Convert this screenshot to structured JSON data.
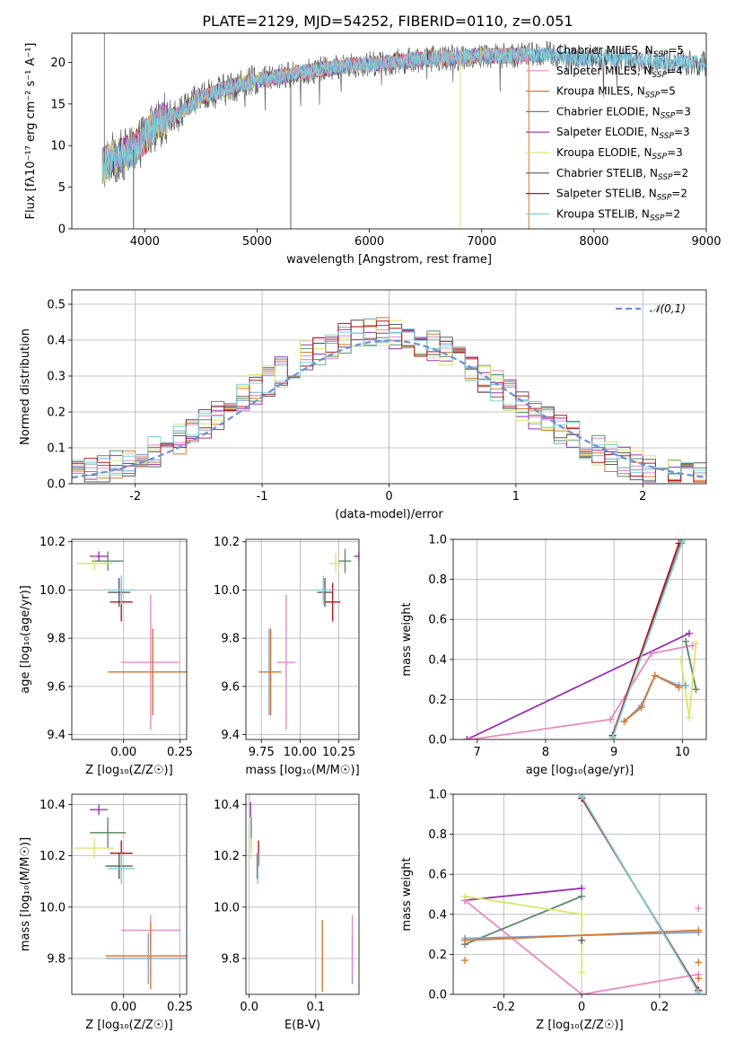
{
  "colors": {
    "Chabrier MILES": "#7aa3d6",
    "Salpeter MILES": "#e88ac0",
    "Kroupa MILES": "#d9782f",
    "Chabrier ELODIE": "#5a8a6a",
    "Salpeter ELODIE": "#9a30b0",
    "Kroupa ELODIE": "#d8e86a",
    "Chabrier STELIB": "#5a5a5a",
    "Salpeter STELIB": "#b01818",
    "Kroupa STELIB": "#7ad0d8"
  },
  "chart_data": [
    {
      "id": "spectrum",
      "type": "line",
      "title": "PLATE=2129, MJD=54252, FIBERID=0110, z=0.051",
      "xlabel": "wavelength [Angstrom, rest frame]",
      "ylabel": "Flux [fλ10⁻¹⁷ erg cm⁻² s⁻¹ A⁻¹]",
      "xlim": [
        3350,
        9000
      ],
      "ylim": [
        0,
        23.5
      ],
      "xticks": [
        4000,
        5000,
        6000,
        7000,
        8000,
        9000
      ],
      "yticks": [
        0,
        5,
        10,
        15,
        20
      ],
      "grid": false,
      "legend_position": "right",
      "legend": [
        {
          "name": "Chabrier MILES",
          "ssp": "5"
        },
        {
          "name": "Salpeter MILES",
          "ssp": "4"
        },
        {
          "name": "Kroupa MILES",
          "ssp": "5"
        },
        {
          "name": "Chabrier ELODIE",
          "ssp": "3"
        },
        {
          "name": "Salpeter ELODIE",
          "ssp": "3"
        },
        {
          "name": "Kroupa ELODIE",
          "ssp": "3"
        },
        {
          "name": "Chabrier STELIB",
          "ssp": "2"
        },
        {
          "name": "Salpeter STELIB",
          "ssp": "2"
        },
        {
          "name": "Kroupa STELIB",
          "ssp": "2"
        }
      ],
      "continuum": {
        "x": [
          3620,
          3700,
          3800,
          3900,
          4000,
          4100,
          4200,
          4300,
          4400,
          4500,
          4600,
          4800,
          5000,
          5200,
          5400,
          5600,
          5800,
          6000,
          6200,
          6400,
          6600,
          6800,
          7000,
          7200,
          7400,
          7600,
          7800,
          8000,
          8200,
          8400,
          8600,
          8800,
          9000
        ],
        "y": [
          7.5,
          8.5,
          8.8,
          9.5,
          11.0,
          12.5,
          13.5,
          13.8,
          14.8,
          15.8,
          16.2,
          17.2,
          17.8,
          18.3,
          18.8,
          19.2,
          19.6,
          19.8,
          20.0,
          20.3,
          20.5,
          20.6,
          20.8,
          20.8,
          20.9,
          21.0,
          20.5,
          20.4,
          20.5,
          20.3,
          20.1,
          20.0,
          19.8
        ]
      },
      "dips": [
        {
          "x": 3900,
          "y": 0
        },
        {
          "x": 5300,
          "y": 0
        },
        {
          "x": 6810,
          "y": 0
        },
        {
          "x": 7420,
          "y": 0
        }
      ],
      "spikes": [
        {
          "x": 3700,
          "y": 23.5
        }
      ]
    },
    {
      "id": "residuals",
      "type": "histogram",
      "xlabel": "(data-model)/error",
      "ylabel": "Normed distribution",
      "xlim": [
        -2.5,
        2.5
      ],
      "ylim": [
        0,
        0.54
      ],
      "xticks": [
        -2,
        -1,
        0,
        1,
        2
      ],
      "yticks": [
        0.0,
        0.1,
        0.2,
        0.3,
        0.4,
        0.5
      ],
      "grid": true,
      "bin_width": 0.1,
      "legend": [
        {
          "name": "𝒩(0,1)",
          "style": "dashed",
          "color": "#6b8fd8"
        }
      ],
      "legend_position": "top-right"
    },
    {
      "id": "age-vs-z",
      "type": "scatter",
      "xlabel": "Z [log₁₀(Z/Z☉)]",
      "ylabel": "age  [log₁₀(age/yr)]",
      "xlim": [
        -0.23,
        0.28
      ],
      "ylim": [
        9.38,
        10.21
      ],
      "xticks": [
        -0.25,
        0.0,
        0.25
      ],
      "xticklabels": [
        "",
        "0.00",
        "0.25"
      ],
      "yticks": [
        9.4,
        9.6,
        9.8,
        10.0,
        10.2
      ],
      "grid": true,
      "points": [
        {
          "series": "Chabrier MILES",
          "x": 0.13,
          "y": 9.66,
          "xerr": 0.19,
          "yerr": 0.18
        },
        {
          "series": "Salpeter MILES",
          "x": 0.12,
          "y": 9.7,
          "xerr": 0.13,
          "yerr": 0.28
        },
        {
          "series": "Kroupa MILES",
          "x": 0.13,
          "y": 9.66,
          "xerr": 0.2,
          "yerr": 0.18
        },
        {
          "series": "Chabrier ELODIE",
          "x": -0.07,
          "y": 10.12,
          "xerr": 0.07,
          "yerr": 0.04
        },
        {
          "series": "Salpeter ELODIE",
          "x": -0.11,
          "y": 10.14,
          "xerr": 0.04,
          "yerr": 0.02
        },
        {
          "series": "Kroupa ELODIE",
          "x": -0.13,
          "y": 10.11,
          "xerr": 0.08,
          "yerr": 0.03
        },
        {
          "series": "Chabrier STELIB",
          "x": -0.02,
          "y": 9.99,
          "xerr": 0.05,
          "yerr": 0.06
        },
        {
          "series": "Salpeter STELIB",
          "x": -0.01,
          "y": 9.95,
          "xerr": 0.05,
          "yerr": 0.08
        },
        {
          "series": "Kroupa STELIB",
          "x": -0.01,
          "y": 10.0,
          "xerr": 0.06,
          "yerr": 0.06
        }
      ]
    },
    {
      "id": "age-vs-mass",
      "type": "scatter",
      "xlabel": "mass [log₁₀(M/M☉)]",
      "xlim": [
        9.65,
        10.38
      ],
      "ylim": [
        9.38,
        10.21
      ],
      "xticks": [
        9.75,
        10.0,
        10.25
      ],
      "xticklabels": [
        "9.75",
        "10.00",
        "10.25"
      ],
      "yticks": [
        9.4,
        9.6,
        9.8,
        10.0,
        10.2
      ],
      "grid": true,
      "points": [
        {
          "series": "Chabrier MILES",
          "x": 9.8,
          "y": 9.66,
          "xerr": 0.07,
          "yerr": 0.18
        },
        {
          "series": "Salpeter MILES",
          "x": 9.91,
          "y": 9.7,
          "xerr": 0.06,
          "yerr": 0.28
        },
        {
          "series": "Kroupa MILES",
          "x": 9.81,
          "y": 9.66,
          "xerr": 0.07,
          "yerr": 0.18
        },
        {
          "series": "Chabrier ELODIE",
          "x": 10.29,
          "y": 10.12,
          "xerr": 0.04,
          "yerr": 0.05
        },
        {
          "series": "Salpeter ELODIE",
          "x": 10.38,
          "y": 10.14,
          "xerr": 0.03,
          "yerr": 0.02
        },
        {
          "series": "Kroupa ELODIE",
          "x": 10.23,
          "y": 10.11,
          "xerr": 0.04,
          "yerr": 0.04
        },
        {
          "series": "Chabrier STELIB",
          "x": 10.16,
          "y": 9.99,
          "xerr": 0.05,
          "yerr": 0.06
        },
        {
          "series": "Salpeter STELIB",
          "x": 10.21,
          "y": 9.95,
          "xerr": 0.05,
          "yerr": 0.08
        },
        {
          "series": "Kroupa STELIB",
          "x": 10.15,
          "y": 10.0,
          "xerr": 0.06,
          "yerr": 0.06
        }
      ]
    },
    {
      "id": "massweight-vs-age",
      "type": "line",
      "xlabel": "age  [log₁₀(age/yr)]",
      "ylabel": "mass weight",
      "xlim": [
        6.65,
        10.35
      ],
      "ylim": [
        0,
        1
      ],
      "xticks": [
        7,
        8,
        9,
        10
      ],
      "yticks": [
        0.0,
        0.2,
        0.4,
        0.6,
        0.8,
        1.0
      ],
      "grid": true,
      "series": [
        {
          "name": "Chabrier MILES",
          "x": [
            9.15,
            9.4,
            9.6,
            9.95,
            10.05
          ],
          "y": [
            0.09,
            0.17,
            0.32,
            0.27,
            0.27
          ]
        },
        {
          "name": "Salpeter MILES",
          "x": [
            6.9,
            8.95,
            9.55,
            10.15
          ],
          "y": [
            0.0,
            0.1,
            0.43,
            0.47
          ]
        },
        {
          "name": "Kroupa MILES",
          "x": [
            9.15,
            9.4,
            9.6,
            9.95
          ],
          "y": [
            0.09,
            0.16,
            0.32,
            0.26
          ]
        },
        {
          "name": "Chabrier ELODIE",
          "x": [
            10.05,
            10.2
          ],
          "y": [
            0.49,
            0.25
          ]
        },
        {
          "name": "Salpeter ELODIE",
          "x": [
            6.85,
            10.1
          ],
          "y": [
            0.0,
            0.53
          ]
        },
        {
          "name": "Kroupa ELODIE",
          "x": [
            9.98,
            10.1,
            10.2
          ],
          "y": [
            0.4,
            0.11,
            0.48
          ]
        },
        {
          "name": "Chabrier STELIB",
          "x": [
            8.98,
            9.98
          ],
          "y": [
            0.02,
            0.98
          ]
        },
        {
          "name": "Salpeter STELIB",
          "x": [
            8.98,
            9.95
          ],
          "y": [
            0.02,
            0.98
          ]
        },
        {
          "name": "Kroupa STELIB",
          "x": [
            8.98,
            10.0
          ],
          "y": [
            0.01,
            0.99
          ]
        }
      ]
    },
    {
      "id": "mass-vs-z",
      "type": "scatter",
      "xlabel": "Z [log₁₀(Z/Z☉)]",
      "ylabel": "mass [log₁₀(M/M☉)]",
      "xlim": [
        -0.23,
        0.28
      ],
      "ylim": [
        9.66,
        10.44
      ],
      "xticks": [
        -0.25,
        0.0,
        0.25
      ],
      "xticklabels": [
        "",
        "0.00",
        "0.25"
      ],
      "yticks": [
        9.8,
        10.0,
        10.2,
        10.4
      ],
      "grid": true,
      "points": [
        {
          "series": "Chabrier MILES",
          "x": 0.11,
          "y": 9.8,
          "xerr": 0.19,
          "yerr": 0.1
        },
        {
          "series": "Salpeter MILES",
          "x": 0.12,
          "y": 9.91,
          "xerr": 0.13,
          "yerr": 0.06
        },
        {
          "series": "Kroupa MILES",
          "x": 0.12,
          "y": 9.81,
          "xerr": 0.2,
          "yerr": 0.13
        },
        {
          "series": "Chabrier ELODIE",
          "x": -0.07,
          "y": 10.29,
          "xerr": 0.08,
          "yerr": 0.06
        },
        {
          "series": "Salpeter ELODIE",
          "x": -0.11,
          "y": 10.38,
          "xerr": 0.04,
          "yerr": 0.02
        },
        {
          "series": "Kroupa ELODIE",
          "x": -0.13,
          "y": 10.23,
          "xerr": 0.09,
          "yerr": 0.04
        },
        {
          "series": "Chabrier STELIB",
          "x": -0.02,
          "y": 10.16,
          "xerr": 0.06,
          "yerr": 0.05
        },
        {
          "series": "Salpeter STELIB",
          "x": -0.01,
          "y": 10.21,
          "xerr": 0.05,
          "yerr": 0.05
        },
        {
          "series": "Kroupa STELIB",
          "x": -0.01,
          "y": 10.15,
          "xerr": 0.06,
          "yerr": 0.06
        }
      ]
    },
    {
      "id": "mass-vs-ebv",
      "type": "scatter",
      "xlabel": "E(B-V)",
      "xlim": [
        -0.005,
        0.165
      ],
      "ylim": [
        9.66,
        10.44
      ],
      "xticks": [
        0.0,
        0.1
      ],
      "xticklabels": [
        "0.0",
        "0.1"
      ],
      "yticks": [
        9.8,
        10.0,
        10.2,
        10.4
      ],
      "grid": true,
      "points": [
        {
          "series": "Chabrier MILES",
          "x": 0.155,
          "y": 9.8,
          "xerr": 0,
          "yerr": 0.1
        },
        {
          "series": "Salpeter MILES",
          "x": 0.155,
          "y": 9.85,
          "xerr": 0,
          "yerr": 0.12
        },
        {
          "series": "Kroupa MILES",
          "x": 0.11,
          "y": 9.81,
          "xerr": 0,
          "yerr": 0.14
        },
        {
          "series": "Chabrier ELODIE",
          "x": 0.003,
          "y": 10.29,
          "xerr": 0,
          "yerr": 0.06
        },
        {
          "series": "Salpeter ELODIE",
          "x": 0.002,
          "y": 10.38,
          "xerr": 0,
          "yerr": 0.03
        },
        {
          "series": "Kroupa ELODIE",
          "x": 0.003,
          "y": 10.23,
          "xerr": 0,
          "yerr": 0.04
        },
        {
          "series": "Chabrier STELIB",
          "x": 0.012,
          "y": 10.16,
          "xerr": 0,
          "yerr": 0.05
        },
        {
          "series": "Salpeter STELIB",
          "x": 0.014,
          "y": 10.21,
          "xerr": 0,
          "yerr": 0.05
        },
        {
          "series": "Kroupa STELIB",
          "x": 0.013,
          "y": 10.15,
          "xerr": 0,
          "yerr": 0.06
        }
      ]
    },
    {
      "id": "massweight-vs-z",
      "type": "line",
      "xlabel": "Z [log₁₀(Z/Z☉)]",
      "ylabel": "mass weight",
      "xlim": [
        -0.33,
        0.32
      ],
      "ylim": [
        0,
        1
      ],
      "xticks": [
        -0.2,
        0.0,
        0.2
      ],
      "yticks": [
        0.0,
        0.2,
        0.4,
        0.6,
        0.8,
        1.0
      ],
      "grid": true,
      "series": [
        {
          "name": "Chabrier MILES",
          "x": [
            -0.3,
            0.3
          ],
          "y": [
            0.28,
            0.31
          ]
        },
        {
          "name": "Salpeter MILES",
          "x": [
            -0.3,
            0.0,
            0.3
          ],
          "y": [
            0.47,
            0.0,
            0.1
          ]
        },
        {
          "name": "Kroupa MILES",
          "x": [
            -0.3,
            0.3
          ],
          "y": [
            0.27,
            0.32
          ]
        },
        {
          "name": "Chabrier ELODIE",
          "x": [
            -0.3,
            0.0
          ],
          "y": [
            0.25,
            0.49
          ]
        },
        {
          "name": "Salpeter ELODIE",
          "x": [
            -0.3,
            0.0
          ],
          "y": [
            0.47,
            0.53
          ]
        },
        {
          "name": "Kroupa ELODIE",
          "x": [
            -0.3,
            0.0,
            0.0
          ],
          "y": [
            0.49,
            0.4,
            0.11
          ]
        },
        {
          "name": "Chabrier STELIB",
          "x": [
            0.0,
            0.3
          ],
          "y": [
            0.98,
            0.02
          ]
        },
        {
          "name": "Salpeter STELIB",
          "x": [
            0.0,
            0.3
          ],
          "y": [
            0.98,
            0.02
          ]
        },
        {
          "name": "Kroupa STELIB",
          "x": [
            0.0,
            0.3
          ],
          "y": [
            0.99,
            0.01
          ]
        }
      ],
      "extra_markers": [
        {
          "series": "Salpeter MILES",
          "x": [
            0.3
          ],
          "y": [
            0.43
          ]
        },
        {
          "series": "Kroupa MILES",
          "x": [
            -0.3,
            0.3,
            0.3
          ],
          "y": [
            0.17,
            0.16,
            0.08
          ]
        },
        {
          "series": "Chabrier STELIB",
          "x": [
            0.0
          ],
          "y": [
            0.27
          ]
        }
      ]
    }
  ]
}
